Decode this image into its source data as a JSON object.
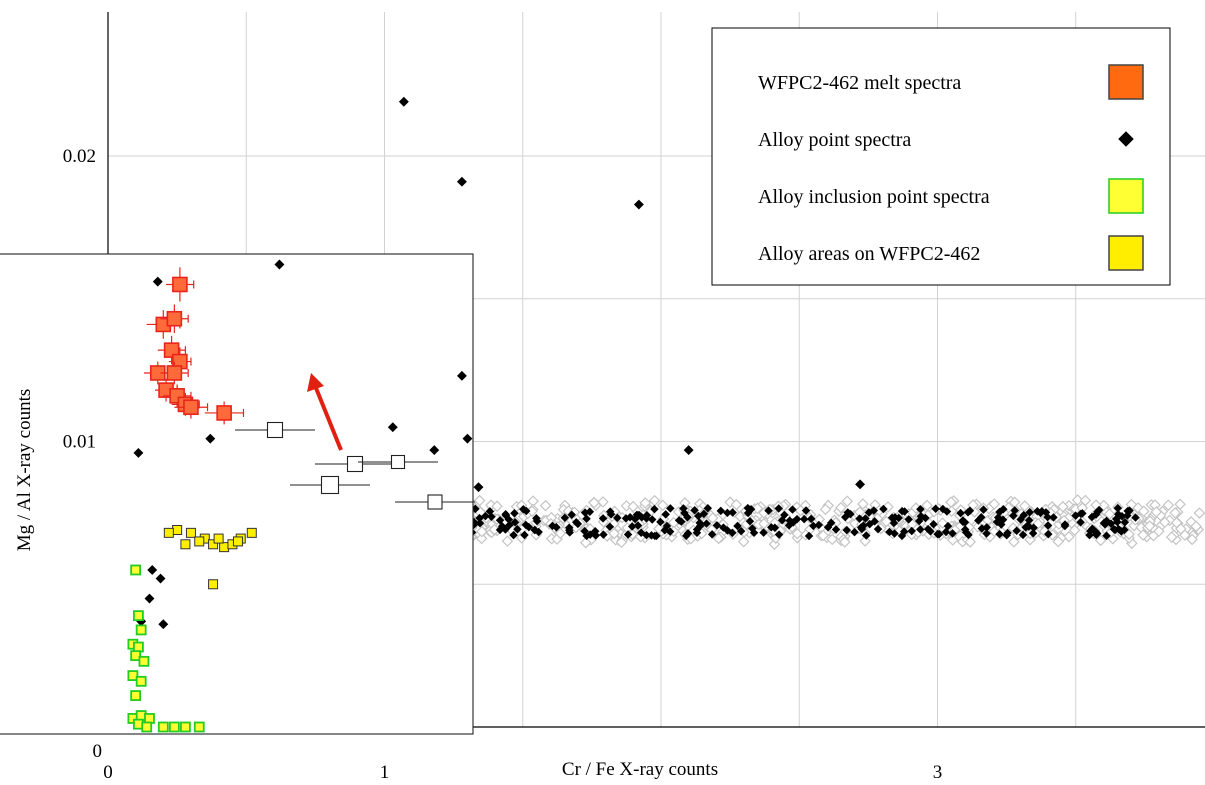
{
  "chart_data": {
    "type": "scatter",
    "title": "",
    "xlabel": "Cr / Fe X-ray counts",
    "ylabel": "Mg / Al X-ray counts",
    "xlim": [
      0,
      4
    ],
    "ylim": [
      0,
      0.025
    ],
    "x_tick_labels": [
      {
        "value": 0,
        "label": "0"
      },
      {
        "value": 1,
        "label": "1"
      },
      {
        "value": 3,
        "label": "3"
      }
    ],
    "y_tick_labels": [
      {
        "value": 0,
        "label": "0"
      },
      {
        "value": 0.01,
        "label": "0.01"
      },
      {
        "value": 0.02,
        "label": "0.02"
      }
    ],
    "x_gridlines": [
      0.5,
      1,
      1.5,
      2,
      2.5,
      3,
      3.5
    ],
    "y_gridlines": [
      0.005,
      0.01,
      0.015,
      0.02
    ],
    "grid": true,
    "legend_position": "top-right",
    "legend": [
      {
        "label": "WFPC2-462 melt spectra",
        "marker": "square",
        "fill": "#ff6a10",
        "stroke": "#444444"
      },
      {
        "label": "Alloy point spectra",
        "marker": "diamond",
        "fill": "#000000",
        "stroke": "#000000"
      },
      {
        "label": "Alloy inclusion point spectra",
        "marker": "square",
        "fill": "#ffff33",
        "stroke": "#22cc22"
      },
      {
        "label": "Alloy areas on WFPC2-462",
        "marker": "square",
        "fill": "#ffee00",
        "stroke": "#444444"
      }
    ],
    "series": [
      {
        "name": "WFPC2-462 melt spectra",
        "color": "#e8251a",
        "points": [
          {
            "x": 0.26,
            "y": 0.0155,
            "xerr": 0.05,
            "yerr": 0.0006
          },
          {
            "x": 0.2,
            "y": 0.0141,
            "xerr": 0.06,
            "yerr": 0.0005
          },
          {
            "x": 0.24,
            "y": 0.0143,
            "xerr": 0.05,
            "yerr": 0.0005
          },
          {
            "x": 0.23,
            "y": 0.0132,
            "xerr": 0.05,
            "yerr": 0.0005
          },
          {
            "x": 0.26,
            "y": 0.0128,
            "xerr": 0.04,
            "yerr": 0.0005
          },
          {
            "x": 0.18,
            "y": 0.0124,
            "xerr": 0.05,
            "yerr": 0.0004
          },
          {
            "x": 0.24,
            "y": 0.0124,
            "xerr": 0.05,
            "yerr": 0.0004
          },
          {
            "x": 0.21,
            "y": 0.0118,
            "xerr": 0.04,
            "yerr": 0.0004
          },
          {
            "x": 0.25,
            "y": 0.0116,
            "xerr": 0.05,
            "yerr": 0.0004
          },
          {
            "x": 0.28,
            "y": 0.0113,
            "xerr": 0.05,
            "yerr": 0.0004
          },
          {
            "x": 0.3,
            "y": 0.0112,
            "xerr": 0.06,
            "yerr": 0.0004
          },
          {
            "x": 0.42,
            "y": 0.011,
            "xerr": 0.07,
            "yerr": 0.0004
          }
        ]
      },
      {
        "name": "Alloy point spectra",
        "color": "#000000",
        "points": [
          {
            "x": 1.07,
            "y": 0.0219
          },
          {
            "x": 1.28,
            "y": 0.0191
          },
          {
            "x": 1.92,
            "y": 0.0183
          },
          {
            "x": 0.62,
            "y": 0.0162
          },
          {
            "x": 0.18,
            "y": 0.0156
          },
          {
            "x": 1.28,
            "y": 0.0123
          },
          {
            "x": 1.03,
            "y": 0.0105
          },
          {
            "x": 0.37,
            "y": 0.0101
          },
          {
            "x": 1.3,
            "y": 0.0101
          },
          {
            "x": 1.18,
            "y": 0.0097
          },
          {
            "x": 0.11,
            "y": 0.0096
          },
          {
            "x": 2.1,
            "y": 0.0097
          },
          {
            "x": 1.34,
            "y": 0.0084
          },
          {
            "x": 2.72,
            "y": 0.0085
          },
          {
            "x": 0.15,
            "y": 0.0045
          },
          {
            "x": 0.12,
            "y": 0.0037
          },
          {
            "x": 0.2,
            "y": 0.0036
          },
          {
            "x": 0.16,
            "y": 0.0055
          },
          {
            "x": 0.19,
            "y": 0.0052
          }
        ]
      },
      {
        "name": "Alloy inclusion point spectra",
        "color": "#22cc22",
        "points": [
          {
            "x": 0.1,
            "y": 0.0055
          },
          {
            "x": 0.11,
            "y": 0.0039
          },
          {
            "x": 0.12,
            "y": 0.0034
          },
          {
            "x": 0.09,
            "y": 0.0029
          },
          {
            "x": 0.11,
            "y": 0.0028
          },
          {
            "x": 0.1,
            "y": 0.0025
          },
          {
            "x": 0.13,
            "y": 0.0023
          },
          {
            "x": 0.09,
            "y": 0.0018
          },
          {
            "x": 0.12,
            "y": 0.0016
          },
          {
            "x": 0.1,
            "y": 0.0011
          },
          {
            "x": 0.09,
            "y": 0.0003
          },
          {
            "x": 0.12,
            "y": 0.0004
          },
          {
            "x": 0.15,
            "y": 0.0003
          },
          {
            "x": 0.11,
            "y": 0.0001
          },
          {
            "x": 0.14,
            "y": 0.0
          },
          {
            "x": 0.2,
            "y": 0.0
          },
          {
            "x": 0.24,
            "y": 0.0
          },
          {
            "x": 0.28,
            "y": 0.0
          },
          {
            "x": 0.33,
            "y": 0.0
          }
        ]
      },
      {
        "name": "Alloy areas on WFPC2-462",
        "color": "#ffee00",
        "points": [
          {
            "x": 0.25,
            "y": 0.0069
          },
          {
            "x": 0.3,
            "y": 0.0068
          },
          {
            "x": 0.35,
            "y": 0.0066
          },
          {
            "x": 0.28,
            "y": 0.0064
          },
          {
            "x": 0.33,
            "y": 0.0065
          },
          {
            "x": 0.38,
            "y": 0.0064
          },
          {
            "x": 0.42,
            "y": 0.0063
          },
          {
            "x": 0.45,
            "y": 0.0064
          },
          {
            "x": 0.48,
            "y": 0.0066
          },
          {
            "x": 0.52,
            "y": 0.0068
          },
          {
            "x": 0.22,
            "y": 0.0068
          },
          {
            "x": 0.4,
            "y": 0.0066
          },
          {
            "x": 0.47,
            "y": 0.0065
          },
          {
            "x": 0.38,
            "y": 0.005
          }
        ]
      }
    ]
  }
}
